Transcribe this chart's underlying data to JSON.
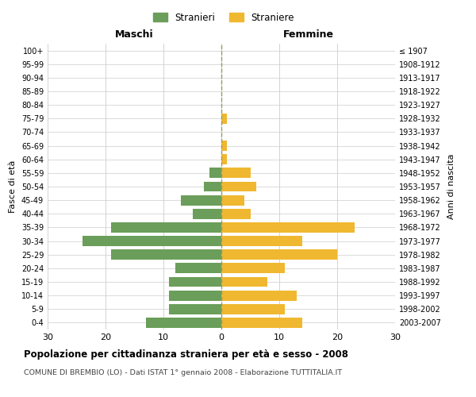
{
  "age_groups": [
    "0-4",
    "5-9",
    "10-14",
    "15-19",
    "20-24",
    "25-29",
    "30-34",
    "35-39",
    "40-44",
    "45-49",
    "50-54",
    "55-59",
    "60-64",
    "65-69",
    "70-74",
    "75-79",
    "80-84",
    "85-89",
    "90-94",
    "95-99",
    "100+"
  ],
  "birth_years": [
    "2003-2007",
    "1998-2002",
    "1993-1997",
    "1988-1992",
    "1983-1987",
    "1978-1982",
    "1973-1977",
    "1968-1972",
    "1963-1967",
    "1958-1962",
    "1953-1957",
    "1948-1952",
    "1943-1947",
    "1938-1942",
    "1933-1937",
    "1928-1932",
    "1923-1927",
    "1918-1922",
    "1913-1917",
    "1908-1912",
    "≤ 1907"
  ],
  "maschi": [
    13,
    9,
    9,
    9,
    8,
    19,
    24,
    19,
    5,
    7,
    3,
    2,
    0,
    0,
    0,
    0,
    0,
    0,
    0,
    0,
    0
  ],
  "femmine": [
    14,
    11,
    13,
    8,
    11,
    20,
    14,
    23,
    5,
    4,
    6,
    5,
    1,
    1,
    0,
    1,
    0,
    0,
    0,
    0,
    0
  ],
  "color_maschi": "#6a9e5a",
  "color_femmine": "#f0b830",
  "title": "Popolazione per cittadinanza straniera per età e sesso - 2008",
  "subtitle": "COMUNE DI BREMBIO (LO) - Dati ISTAT 1° gennaio 2008 - Elaborazione TUTTITALIA.IT",
  "xlabel_left": "Maschi",
  "xlabel_right": "Femmine",
  "ylabel_left": "Fasce di età",
  "ylabel_right": "Anni di nascita",
  "legend_maschi": "Stranieri",
  "legend_femmine": "Straniere",
  "xlim": 30,
  "background_color": "#ffffff",
  "grid_color": "#cccccc",
  "dashed_line_color": "#999966"
}
